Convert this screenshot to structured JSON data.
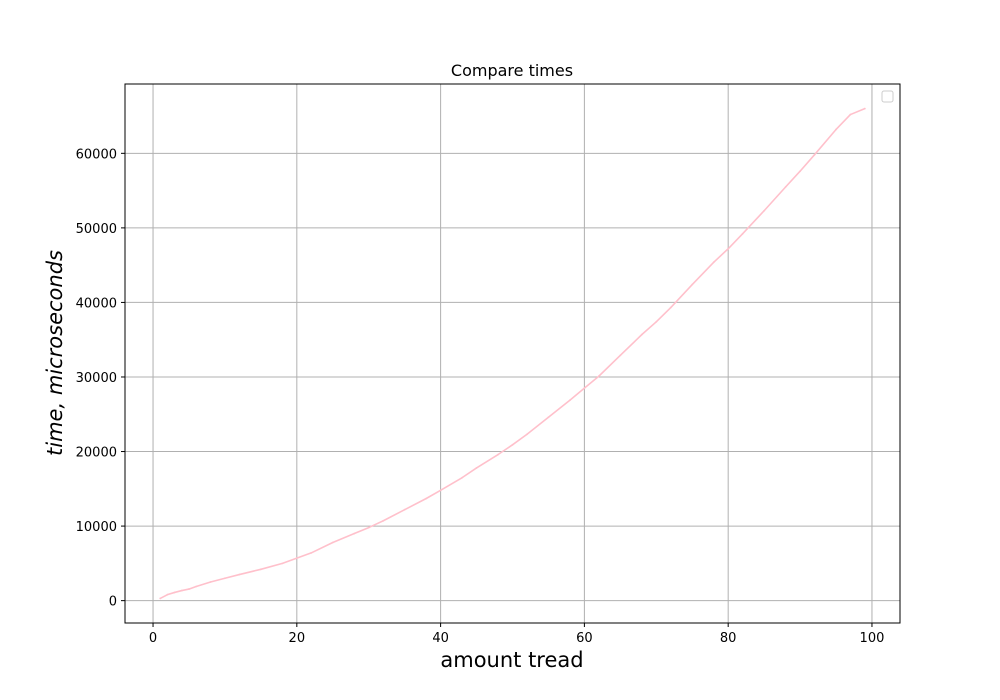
{
  "chart_data": {
    "type": "line",
    "title": "Compare times",
    "xlabel": "amount tread",
    "ylabel": "time, microseconds",
    "xlim": [
      -3.9,
      103.9
    ],
    "ylim": [
      -3000,
      69300
    ],
    "xticks": [
      0,
      20,
      40,
      60,
      80,
      100
    ],
    "yticks": [
      0,
      10000,
      20000,
      30000,
      40000,
      50000,
      60000
    ],
    "xtick_labels": [
      "0",
      "20",
      "40",
      "60",
      "80",
      "100"
    ],
    "ytick_labels": [
      "0",
      "10000",
      "20000",
      "30000",
      "40000",
      "50000",
      "60000"
    ],
    "grid": true,
    "legend": {
      "placement": "upper right",
      "entries": []
    },
    "series": [
      {
        "color": "#ffc0cb",
        "x": [
          1,
          2,
          3,
          4,
          5,
          6,
          8,
          10,
          12,
          15,
          18,
          20,
          22,
          25,
          28,
          30,
          32,
          35,
          38,
          40,
          43,
          45,
          48,
          50,
          52,
          55,
          58,
          60,
          62,
          65,
          68,
          70,
          72,
          75,
          78,
          80,
          82,
          85,
          88,
          90,
          92,
          95,
          97,
          99
        ],
        "values": [
          300,
          800,
          1100,
          1350,
          1550,
          1900,
          2500,
          3000,
          3500,
          4200,
          5000,
          5700,
          6400,
          7800,
          9000,
          9800,
          10700,
          12200,
          13700,
          14800,
          16500,
          17800,
          19600,
          20900,
          22300,
          24600,
          26900,
          28500,
          30100,
          32900,
          35700,
          37400,
          39300,
          42400,
          45400,
          47200,
          49200,
          52300,
          55500,
          57600,
          59800,
          63200,
          65200,
          66000
        ]
      }
    ]
  }
}
